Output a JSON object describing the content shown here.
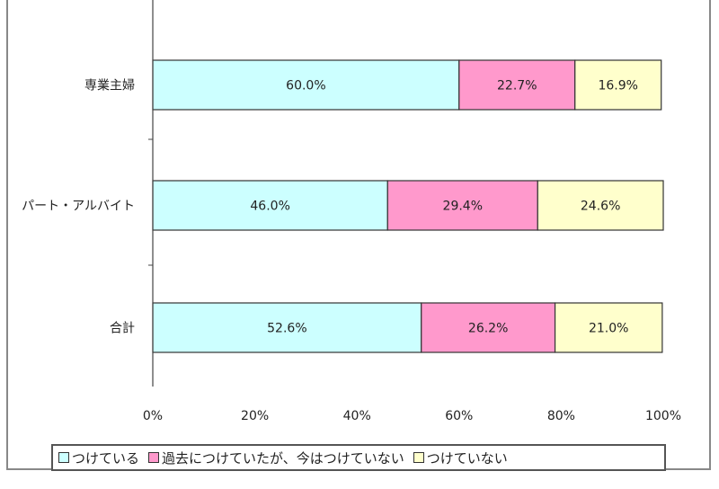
{
  "chart_data": {
    "type": "bar",
    "orientation": "horizontal",
    "stacked": "percent",
    "categories": [
      "専業主婦",
      "パート・アルバイト",
      "合計"
    ],
    "series": [
      {
        "name": "つけている",
        "color": "#CCFFFF",
        "values": [
          60.0,
          46.0,
          52.6
        ],
        "labels": [
          "60.0%",
          "46.0%",
          "52.6%"
        ]
      },
      {
        "name": "過去につけていたが、今はつけていない",
        "color": "#FF99CC",
        "values": [
          22.7,
          29.4,
          26.2
        ],
        "labels": [
          "22.7%",
          "29.4%",
          "26.2%"
        ]
      },
      {
        "name": "つけていない",
        "color": "#FFFFCC",
        "values": [
          16.9,
          24.6,
          21.0
        ],
        "labels": [
          "16.9%",
          "24.6%",
          "21.0%"
        ]
      }
    ],
    "xlim": [
      0,
      100
    ],
    "xticks": [
      "0%",
      "20%",
      "40%",
      "60%",
      "80%",
      "100%"
    ],
    "grid": false,
    "legend": "bottom"
  }
}
